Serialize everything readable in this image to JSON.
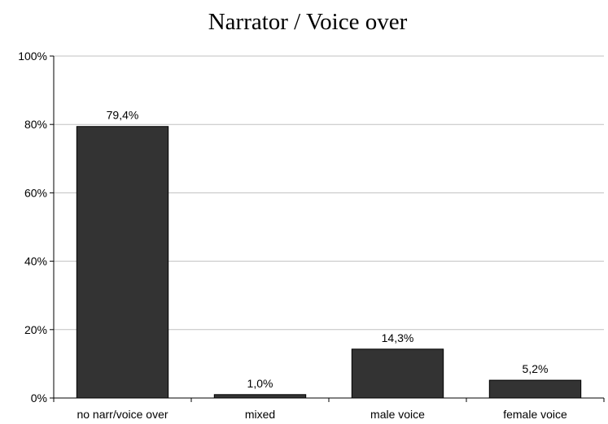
{
  "chart_data": {
    "type": "bar",
    "title": "Narrator / Voice over",
    "xlabel": "",
    "ylabel": "",
    "categories": [
      "no narr/voice over",
      "mixed",
      "male voice",
      "female voice"
    ],
    "values": [
      79.4,
      1.0,
      14.3,
      5.2
    ],
    "data_labels": [
      "79,4%",
      "1,0%",
      "14,3%",
      "5,2%"
    ],
    "ylim": [
      0,
      100
    ],
    "yticks": [
      0,
      20,
      40,
      60,
      80,
      100
    ],
    "ytick_labels": [
      "0%",
      "20%",
      "40%",
      "60%",
      "80%",
      "100%"
    ],
    "grid": true,
    "legend": "none",
    "colors": {
      "bar": "#333333",
      "grid": "#c0c0c0",
      "axis": "#000000"
    }
  }
}
